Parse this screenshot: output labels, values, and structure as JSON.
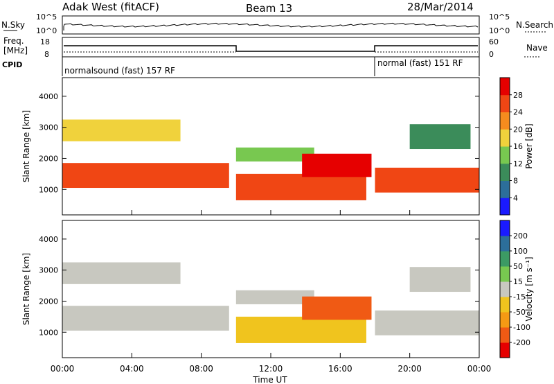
{
  "header": {
    "radar": "Adak West (fitACF)",
    "beam": "Beam 13",
    "date": "28/Mar/2014"
  },
  "top_panel": {
    "left_label": "N.Sky",
    "left_ticks": [
      "10^5",
      "10^0"
    ],
    "right_label": "N.Search",
    "right_ticks": [
      "10^5",
      "10^0"
    ]
  },
  "freq_panel": {
    "left_label_1": "Freq.",
    "left_label_2": "[MHz]",
    "left_ticks": [
      "18",
      "8"
    ],
    "right_label": "Nave",
    "right_ticks": [
      "60",
      "0"
    ]
  },
  "cpid": {
    "label": "CPID",
    "mode1": "normalsound (fast) 157 RF",
    "mode2": "normal (fast) 151 RF"
  },
  "chart_data": [
    {
      "type": "heatmap",
      "title": "Power",
      "ylabel": "Slant Range [km]",
      "xlabel": "",
      "ylim": [
        180,
        4600
      ],
      "yticks": [
        "1000",
        "2000",
        "3000",
        "4000"
      ],
      "colorbar": {
        "label": "Power [dB]",
        "range": [
          0,
          32
        ],
        "ticks": [
          "4",
          "8",
          "12",
          "16",
          "20",
          "24",
          "28"
        ],
        "colors": [
          "#1a1aff",
          "#2c6e9a",
          "#3b8c5a",
          "#78c850",
          "#f0d23c",
          "#f58c1e",
          "#f04614",
          "#e60000"
        ]
      },
      "echo_regions": [
        {
          "t": [
            0.0,
            9.6
          ],
          "range_km": [
            1050,
            1850
          ],
          "power_db": 24
        },
        {
          "t": [
            0.0,
            6.8
          ],
          "range_km": [
            2550,
            3250
          ],
          "power_db": 16
        },
        {
          "t": [
            10.0,
            14.5
          ],
          "range_km": [
            1900,
            2350
          ],
          "power_db": 14
        },
        {
          "t": [
            10.0,
            17.5
          ],
          "range_km": [
            650,
            1500
          ],
          "power_db": 26
        },
        {
          "t": [
            13.8,
            17.8
          ],
          "range_km": [
            1400,
            2150
          ],
          "power_db": 28
        },
        {
          "t": [
            18.0,
            24.0
          ],
          "range_km": [
            900,
            1700
          ],
          "power_db": 24
        },
        {
          "t": [
            20.0,
            23.5
          ],
          "range_km": [
            2300,
            3100
          ],
          "power_db": 10
        }
      ]
    },
    {
      "type": "heatmap",
      "title": "Velocity",
      "ylabel": "Slant Range [km]",
      "xlabel": "Time UT",
      "ylim": [
        180,
        4600
      ],
      "yticks": [
        "1000",
        "2000",
        "3000",
        "4000"
      ],
      "xticks": [
        "00:00",
        "04:00",
        "08:00",
        "12:00",
        "16:00",
        "20:00",
        "00:00"
      ],
      "colorbar": {
        "label": "Velocity [m s⁻¹]",
        "range": [
          -250,
          250
        ],
        "ticks": [
          "200",
          "100",
          "50",
          "15",
          "-15",
          "-50",
          "-100",
          "-200"
        ],
        "colors": [
          "#e60000",
          "#f05a14",
          "#f59a14",
          "#f0c41e",
          "#c8c8c0",
          "#78c850",
          "#3c9a64",
          "#2c6e9a",
          "#1a1aff"
        ]
      },
      "echo_regions": [
        {
          "t": [
            0.0,
            9.6
          ],
          "range_km": [
            1050,
            1850
          ],
          "velocity": 0
        },
        {
          "t": [
            0.0,
            6.8
          ],
          "range_km": [
            2550,
            3250
          ],
          "velocity": 0
        },
        {
          "t": [
            10.0,
            14.5
          ],
          "range_km": [
            1900,
            2350
          ],
          "velocity": 0
        },
        {
          "t": [
            10.0,
            17.5
          ],
          "range_km": [
            650,
            1500
          ],
          "velocity": -60
        },
        {
          "t": [
            13.8,
            17.8
          ],
          "range_km": [
            1400,
            2150
          ],
          "velocity": -150
        },
        {
          "t": [
            18.0,
            24.0
          ],
          "range_km": [
            900,
            1700
          ],
          "velocity": 0
        },
        {
          "t": [
            20.0,
            23.5
          ],
          "range_km": [
            2300,
            3100
          ],
          "velocity": 0
        }
      ]
    }
  ]
}
